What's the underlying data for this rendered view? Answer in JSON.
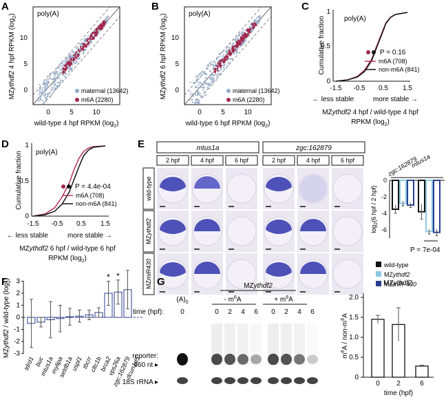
{
  "panels": {
    "A": {
      "letter": "A",
      "tag": "poly(A)",
      "x_label": "wild-type 4 hpf RPKM (log",
      "x_label_sub": "2",
      "y_label_pre": "MZ",
      "y_label_gene": "ythdf2",
      "y_label_post": " 4 hpf RPKM (log",
      "x_ticks": [
        "0",
        "5",
        "10"
      ],
      "y_ticks": [
        "0",
        "5",
        "10"
      ],
      "legend": [
        "maternal (13642)",
        "m6A (2280)"
      ]
    },
    "B": {
      "letter": "B",
      "tag": "poly(A)",
      "x_label": "wild-type 6 hpf RPKM (log",
      "x_label_sub": "2",
      "y_label_pre": "MZ",
      "y_label_gene": "ythdf2",
      "y_label_post": " 6 hpf RPKM (log",
      "x_ticks": [
        "0",
        "5",
        "10"
      ],
      "y_ticks": [
        "0",
        "5",
        "10"
      ],
      "legend": [
        "maternal (13642)",
        "m6A (2280)"
      ]
    },
    "C": {
      "letter": "C",
      "tag": "poly(A)",
      "y_label": "Cumulative fraction",
      "x_ticks": [
        "-1.5",
        "-0.5",
        "0.5",
        "1.5"
      ],
      "y_ticks": [
        "0",
        "0.5",
        "1"
      ],
      "p_value": "P = 0.16",
      "legend": [
        "m6A (708)",
        "non-m6A (841)"
      ],
      "less_stable": "less stable",
      "more_stable": "more stable",
      "x_label_line1_pre": "MZ",
      "x_label_line1_gene": "ythdf2",
      "x_label_line1_post": " 4 hpf / wild-type 4 hpf",
      "x_label_line2": "RPKM (log"
    },
    "D": {
      "letter": "D",
      "tag": "poly(A)",
      "y_label": "Cumulative fraction",
      "x_ticks": [
        "-1.5",
        "-0.5",
        "0.5",
        "1.5"
      ],
      "y_ticks": [
        "0",
        "0.5",
        "1"
      ],
      "p_value": "P = 4.4e-04",
      "legend": [
        "m6A (708)",
        "non-m6A (841)"
      ],
      "less_stable": "less stable",
      "more_stable": "more stable",
      "x_label_line1_pre": "MZ",
      "x_label_line1_gene": "ythdf2",
      "x_label_line1_post": " 6 hpf / wild-type 6 hpf",
      "x_label_line2": "RPKM (log"
    },
    "E": {
      "letter": "E",
      "genes": [
        "mtus1a",
        "zgc:162879"
      ],
      "times": [
        "2 hpf",
        "4 hpf",
        "6 hpf"
      ],
      "rows": [
        "wild-type",
        "MZythdf2",
        "MZmiR430"
      ],
      "bar_genes": [
        "zgc:162879",
        "mtus1a"
      ],
      "bar_ylabel": "log2(6 hpf / 2 hpf)",
      "bar_y_ticks": [
        "0",
        "-2",
        "-4",
        "-6"
      ],
      "p_value": "P = 7e-04",
      "legend": [
        "wild-type",
        "MZythdf2",
        "MZmiR-430"
      ]
    },
    "F": {
      "letter": "F",
      "y_label_pre": "MZ",
      "y_label_gene": "ythdf2",
      "y_label_post": " / wild-type (log",
      "y_ticks": [
        "3",
        "2",
        "1",
        "0",
        "-1",
        "-2",
        "-3"
      ],
      "genes": [
        "tdrd1",
        "buc",
        "mtus1a",
        "mylipa",
        "setdb1a",
        "uspl1",
        "tbcrr",
        "cltc1b",
        "brca2",
        "vps26a",
        "zgc:162879",
        "dcun1d5"
      ],
      "star": "*"
    },
    "G": {
      "letter": "G",
      "header": "MZythdf2",
      "minus_label": "- m6A",
      "plus_label": "+ m6A",
      "time_label": "time (hpf):",
      "times": [
        "0",
        "0",
        "2",
        "4",
        "6",
        "0",
        "2",
        "4",
        "6"
      ],
      "a0_label": "(A)0",
      "reporter_label": "reporter:",
      "size_label": "660 nt",
      "rrna_label": "18S rRNA",
      "bar_title": "MZythdf2",
      "bar_ylabel": "m6A / non-m6A",
      "bar_xlabel": "time (hpf)",
      "bar_x_ticks": [
        "0",
        "2",
        "6"
      ],
      "bar_y_ticks": [
        "0",
        "0.5",
        "1.0",
        "1.5",
        "2.0"
      ]
    }
  },
  "chart_data": [
    {
      "type": "line",
      "panel": "C",
      "x_range": [
        -1.5,
        1.5
      ],
      "ylim": [
        0,
        1
      ],
      "series": [
        {
          "name": "m6A (708)",
          "x": [
            -1.5,
            -1.0,
            -0.6,
            -0.3,
            0,
            0.2,
            0.4,
            0.6,
            0.8,
            1.0,
            1.5
          ],
          "values": [
            0,
            0.02,
            0.07,
            0.16,
            0.32,
            0.5,
            0.68,
            0.85,
            0.93,
            0.97,
            1
          ]
        },
        {
          "name": "non-m6A (841)",
          "x": [
            -1.5,
            -1.0,
            -0.6,
            -0.3,
            0,
            0.2,
            0.4,
            0.6,
            0.8,
            1.0,
            1.5
          ],
          "values": [
            0,
            0.02,
            0.06,
            0.14,
            0.3,
            0.48,
            0.66,
            0.84,
            0.93,
            0.97,
            1
          ]
        }
      ],
      "colors": {
        "m6A": "#b5325a",
        "non": "#111111"
      }
    },
    {
      "type": "line",
      "panel": "D",
      "x_range": [
        -1.5,
        1.5
      ],
      "ylim": [
        0,
        1
      ],
      "series": [
        {
          "name": "m6A (708)",
          "x": [
            -1.5,
            -1.0,
            -0.6,
            -0.3,
            0,
            0.2,
            0.4,
            0.6,
            0.8,
            1.0,
            1.5
          ],
          "values": [
            0,
            0.03,
            0.12,
            0.27,
            0.47,
            0.66,
            0.82,
            0.92,
            0.97,
            0.99,
            1
          ]
        },
        {
          "name": "non-m6A (841)",
          "x": [
            -1.5,
            -1.0,
            -0.6,
            -0.3,
            0,
            0.2,
            0.4,
            0.6,
            0.8,
            1.0,
            1.5
          ],
          "values": [
            0,
            0.02,
            0.07,
            0.17,
            0.34,
            0.52,
            0.7,
            0.86,
            0.94,
            0.98,
            1
          ]
        }
      ]
    },
    {
      "type": "bar",
      "panel": "E",
      "categories": [
        "zgc:162879",
        "mtus1a"
      ],
      "ylim": [
        -7,
        0
      ],
      "series": [
        {
          "name": "wild-type",
          "values": [
            -3.5,
            -3.8
          ]
        },
        {
          "name": "MZythdf2",
          "values": [
            -2.8,
            -6.2
          ]
        },
        {
          "name": "MZmiR-430",
          "values": [
            -3.0,
            -6.3
          ]
        }
      ],
      "errors": [
        [
          0.5,
          0.9
        ],
        [
          0.3,
          0.3
        ],
        [
          0.3,
          0.4
        ]
      ],
      "colors": [
        "#111111",
        "#88c9e0",
        "#2b3d8f"
      ]
    },
    {
      "type": "bar",
      "panel": "F",
      "categories": [
        "tdrd1",
        "buc",
        "mtus1a",
        "mylipa",
        "setdb1a",
        "uspl1",
        "tbcrr",
        "cltc1b",
        "brca2",
        "vps26a",
        "zgc:162879",
        "dcun1d5"
      ],
      "ylim": [
        -3,
        3
      ],
      "values": [
        -0.5,
        -0.4,
        -0.2,
        -0.1,
        0.05,
        0.1,
        0.2,
        0.4,
        2.0,
        2.1,
        2.3,
        0.0
      ],
      "errors": [
        2.0,
        0.4,
        1.5,
        1.1,
        0.7,
        0.5,
        0.4,
        0.4,
        1.0,
        1.0,
        1.6,
        0.0
      ]
    },
    {
      "type": "bar",
      "panel": "G",
      "categories": [
        "0",
        "2",
        "6"
      ],
      "ylim": [
        0,
        2.0
      ],
      "values": [
        1.45,
        1.32,
        0.28
      ],
      "errors": [
        0.1,
        0.42,
        0.02
      ]
    }
  ]
}
